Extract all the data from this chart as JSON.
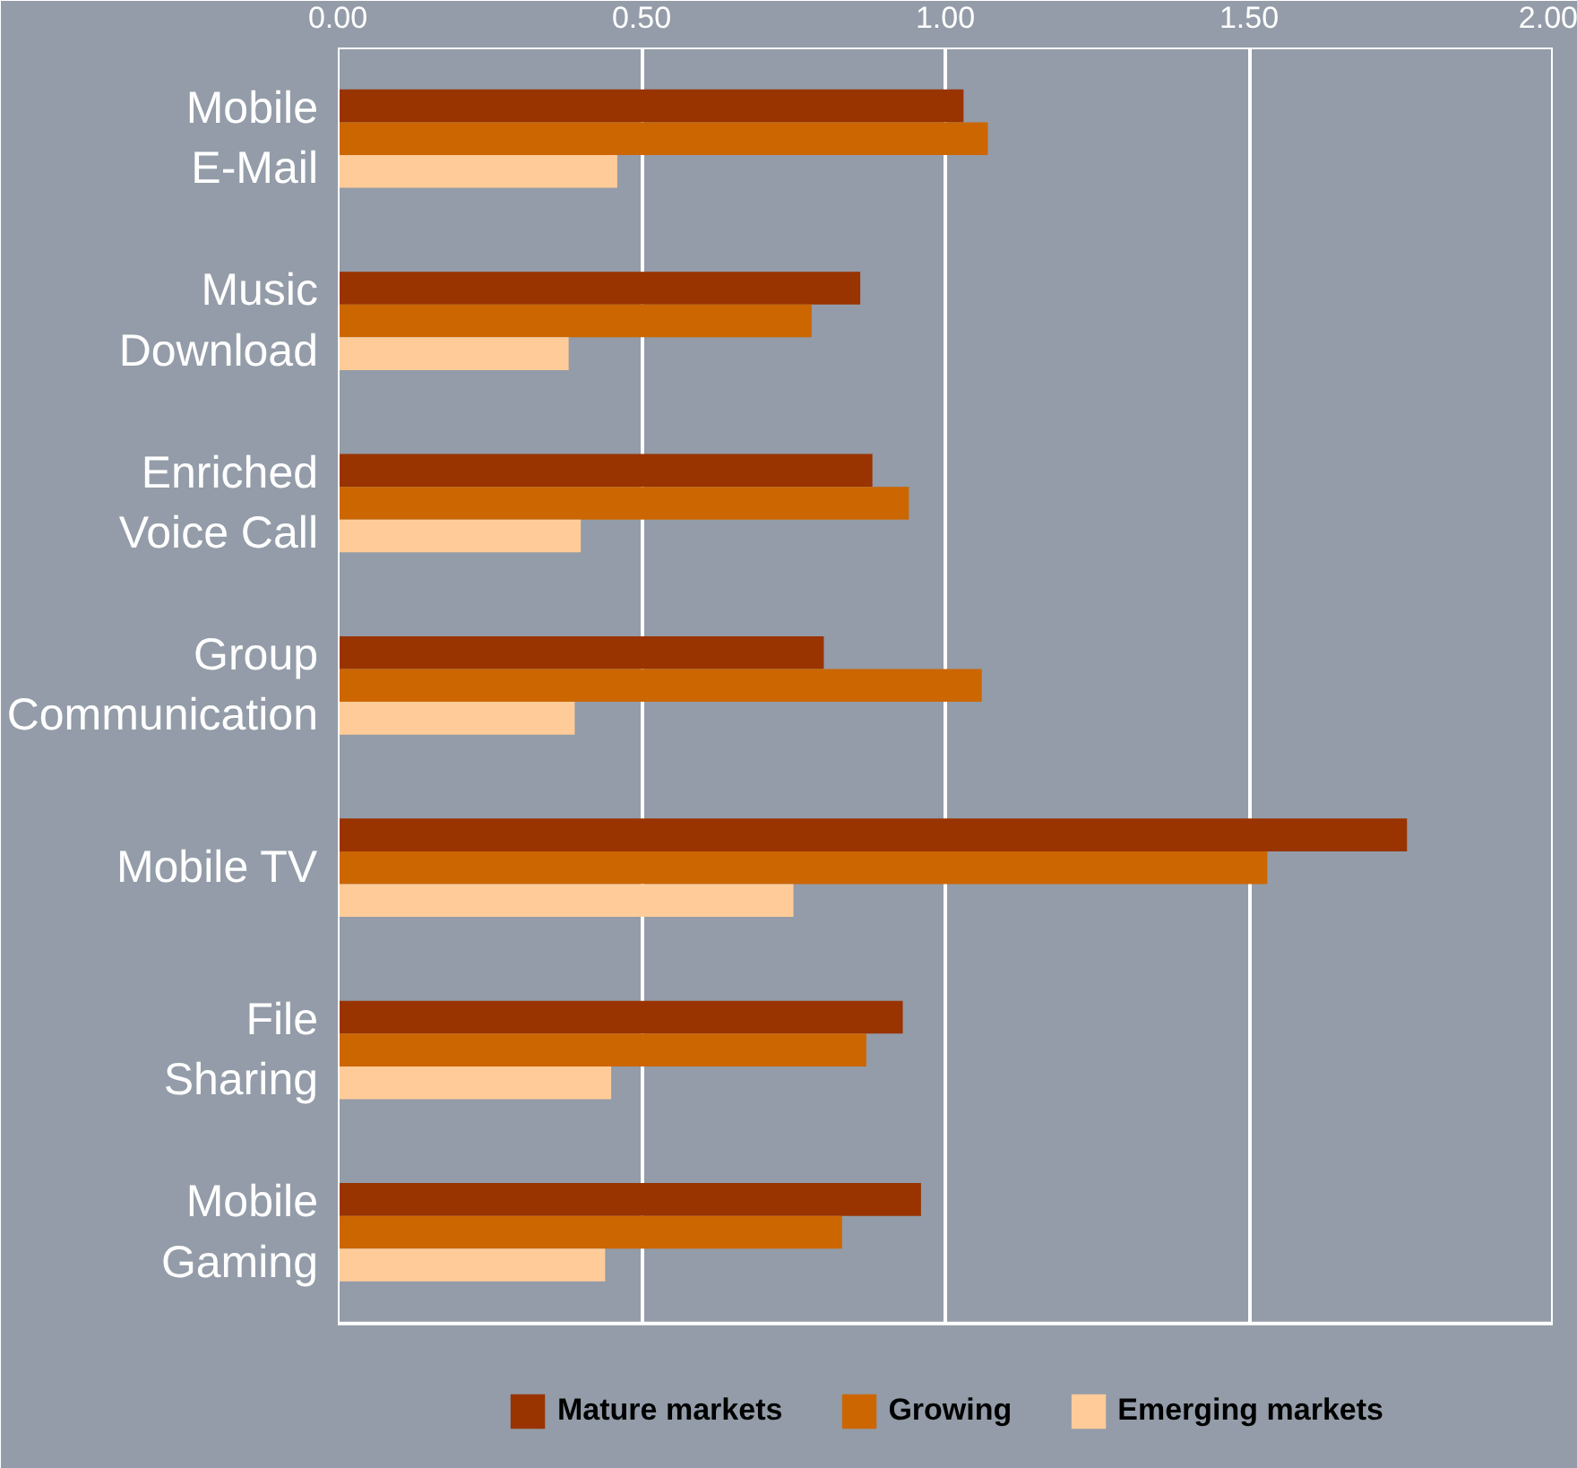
{
  "chart_data": {
    "type": "bar",
    "orientation": "horizontal",
    "categories": [
      "Mobile\nE-Mail",
      "Music\nDownload",
      "Enriched\nVoice Call",
      "Group\nCommunication",
      "Mobile TV",
      "File\nSharing",
      "Mobile\nGaming"
    ],
    "series": [
      {
        "name": "Mature markets",
        "color": "#993300",
        "values": [
          1.03,
          0.86,
          0.88,
          0.8,
          1.76,
          0.93,
          0.96
        ]
      },
      {
        "name": "Growing",
        "color": "#cc6600",
        "values": [
          1.07,
          0.78,
          0.94,
          1.06,
          1.53,
          0.87,
          0.83
        ]
      },
      {
        "name": "Emerging markets",
        "color": "#ffcc99",
        "values": [
          0.46,
          0.38,
          0.4,
          0.39,
          0.75,
          0.45,
          0.44
        ]
      }
    ],
    "xlim": [
      0,
      2
    ],
    "xticks": [
      {
        "value": 0,
        "label": "0.00"
      },
      {
        "value": 0.5,
        "label": "0.50"
      },
      {
        "value": 1,
        "label": "1.00"
      },
      {
        "value": 1.5,
        "label": "1.50"
      },
      {
        "value": 2,
        "label": "2.00"
      }
    ],
    "grid": "x",
    "legend": "bottom"
  }
}
